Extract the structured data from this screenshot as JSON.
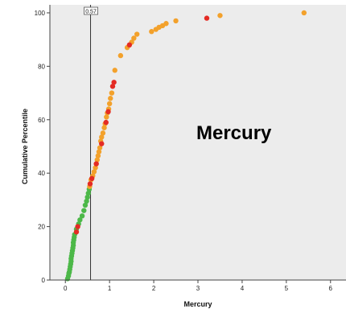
{
  "chart_data": {
    "type": "scatter",
    "title": "",
    "overlay_label": "Mercury",
    "xlabel": "Mercury",
    "ylabel": "Cumulative Percentile",
    "xlim": [
      -0.35,
      6.35
    ],
    "ylim": [
      0,
      103
    ],
    "xticks": [
      0,
      1,
      2,
      3,
      4,
      5,
      6
    ],
    "yticks": [
      0,
      20,
      40,
      60,
      80,
      100
    ],
    "grid": false,
    "reference_line": {
      "x": 0.57,
      "label": "0.57"
    },
    "colors": {
      "plot_background": "#ececec",
      "green": "#4cb848",
      "orange": "#f3a12b",
      "red": "#e42b24",
      "reference_line": "#333333"
    },
    "series": [
      {
        "color": "green",
        "points": [
          [
            0.05,
            0.5
          ],
          [
            0.07,
            1.5
          ],
          [
            0.08,
            2.5
          ],
          [
            0.09,
            3.0
          ],
          [
            0.1,
            4.0
          ],
          [
            0.11,
            5.0
          ],
          [
            0.12,
            6.0
          ],
          [
            0.13,
            7.0
          ],
          [
            0.13,
            8.0
          ],
          [
            0.14,
            9.0
          ],
          [
            0.15,
            10.0
          ],
          [
            0.16,
            11.0
          ],
          [
            0.17,
            12.0
          ],
          [
            0.18,
            13.0
          ],
          [
            0.18,
            14.0
          ],
          [
            0.19,
            15.0
          ],
          [
            0.2,
            16.0
          ],
          [
            0.21,
            17.0
          ],
          [
            0.25,
            19.0
          ],
          [
            0.3,
            21.0
          ],
          [
            0.33,
            22.5
          ],
          [
            0.38,
            24.0
          ],
          [
            0.42,
            26.0
          ],
          [
            0.45,
            28.0
          ],
          [
            0.48,
            29.5
          ],
          [
            0.5,
            31.0
          ],
          [
            0.52,
            32.5
          ],
          [
            0.54,
            34.0
          ]
        ]
      },
      {
        "color": "orange",
        "points": [
          [
            0.55,
            35.0
          ],
          [
            0.58,
            37.5
          ],
          [
            0.62,
            39.0
          ],
          [
            0.65,
            40.5
          ],
          [
            0.68,
            42.0
          ],
          [
            0.72,
            45.0
          ],
          [
            0.74,
            46.5
          ],
          [
            0.76,
            48.0
          ],
          [
            0.78,
            49.5
          ],
          [
            0.8,
            52.0
          ],
          [
            0.82,
            53.5
          ],
          [
            0.85,
            55.0
          ],
          [
            0.88,
            57.0
          ],
          [
            0.9,
            58.5
          ],
          [
            0.93,
            61.0
          ],
          [
            0.95,
            62.5
          ],
          [
            0.98,
            64.0
          ],
          [
            1.0,
            66.0
          ],
          [
            1.02,
            68.0
          ],
          [
            1.05,
            70.0
          ],
          [
            1.12,
            78.5
          ],
          [
            1.25,
            84.0
          ],
          [
            1.4,
            87.0
          ],
          [
            1.5,
            89.0
          ],
          [
            1.55,
            90.5
          ],
          [
            1.62,
            92.0
          ],
          [
            1.95,
            93.0
          ],
          [
            2.05,
            93.8
          ],
          [
            2.12,
            94.6
          ],
          [
            2.2,
            95.2
          ],
          [
            2.28,
            96.0
          ],
          [
            2.5,
            97.0
          ],
          [
            3.5,
            99.0
          ],
          [
            5.4,
            100.0
          ]
        ]
      },
      {
        "color": "red",
        "points": [
          [
            0.25,
            18.0
          ],
          [
            0.28,
            20.0
          ],
          [
            0.56,
            36.0
          ],
          [
            0.6,
            38.0
          ],
          [
            0.7,
            43.5
          ],
          [
            0.82,
            51.0
          ],
          [
            0.92,
            59.0
          ],
          [
            0.97,
            63.0
          ],
          [
            1.07,
            72.5
          ],
          [
            1.1,
            74.0
          ],
          [
            1.45,
            88.0
          ],
          [
            3.2,
            98.0
          ]
        ]
      }
    ]
  }
}
